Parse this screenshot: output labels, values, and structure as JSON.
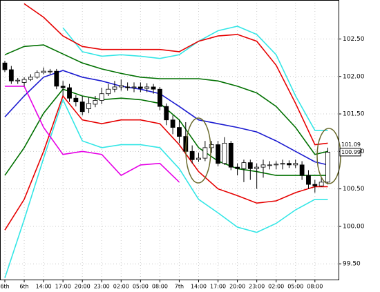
{
  "chart_data": {
    "type": "candlestick",
    "categories": [
      "6th",
      null,
      null,
      "6th",
      null,
      null,
      "14:00",
      null,
      null,
      "17:00",
      null,
      null,
      "20:00",
      null,
      null,
      "23:00",
      null,
      null,
      "02:00",
      null,
      null,
      "05:00",
      null,
      null,
      "08:00",
      null,
      null,
      "7th",
      null,
      null,
      "14:00",
      null,
      null,
      "17:00",
      null,
      null,
      "20:00",
      null,
      null,
      "23:00",
      null,
      null,
      "02:00",
      null,
      null,
      "05:00",
      null,
      null,
      "08:00",
      null,
      null
    ],
    "open": [
      102.18,
      102.09,
      101.94,
      101.92,
      101.96,
      101.99,
      102.05,
      102.07,
      102.07,
      101.87,
      101.85,
      101.71,
      101.66,
      101.57,
      101.63,
      101.68,
      101.77,
      101.83,
      101.86,
      101.86,
      101.85,
      101.86,
      101.84,
      101.86,
      101.83,
      101.6,
      101.42,
      101.32,
      101.2,
      101.0,
      100.89,
      100.91,
      101.05,
      101.09,
      100.84,
      101.11,
      100.79,
      100.77,
      100.85,
      100.77,
      100.79,
      100.82,
      100.82,
      100.83,
      100.84,
      100.82,
      100.82,
      100.68,
      100.56,
      100.54,
      100.59
    ],
    "high": [
      102.21,
      102.14,
      101.98,
      101.99,
      102.03,
      102.08,
      102.12,
      102.1,
      102.1,
      101.94,
      101.9,
      101.75,
      101.74,
      101.72,
      101.74,
      101.85,
      101.9,
      101.94,
      101.96,
      101.92,
      101.92,
      101.92,
      101.91,
      101.9,
      101.86,
      101.64,
      101.48,
      101.42,
      101.39,
      101.08,
      100.98,
      101.14,
      101.14,
      101.14,
      101.19,
      101.14,
      100.84,
      100.89,
      100.89,
      100.84,
      100.89,
      100.87,
      100.87,
      100.89,
      100.88,
      100.89,
      100.87,
      100.75,
      100.62,
      100.65,
      101.05
    ],
    "low": [
      102.06,
      101.9,
      101.9,
      101.87,
      101.94,
      101.97,
      102.03,
      102.03,
      101.83,
      101.74,
      101.66,
      101.6,
      101.48,
      101.51,
      101.59,
      101.63,
      101.74,
      101.79,
      101.81,
      101.81,
      101.79,
      101.79,
      101.79,
      101.77,
      101.55,
      101.35,
      101.23,
      101.11,
      100.96,
      100.84,
      100.86,
      100.87,
      100.98,
      100.8,
      100.82,
      100.75,
      100.68,
      100.59,
      100.62,
      100.5,
      100.65,
      100.76,
      100.76,
      100.76,
      100.78,
      100.78,
      100.62,
      100.5,
      100.45,
      100.53,
      100.56
    ],
    "close": [
      102.09,
      101.94,
      101.95,
      101.96,
      101.99,
      102.05,
      102.07,
      102.07,
      101.87,
      101.85,
      101.71,
      101.66,
      101.53,
      101.64,
      101.68,
      101.77,
      101.83,
      101.86,
      101.88,
      101.85,
      101.86,
      101.84,
      101.86,
      101.83,
      101.6,
      101.42,
      101.32,
      101.2,
      101.0,
      100.89,
      100.91,
      101.05,
      101.09,
      100.84,
      101.11,
      100.79,
      100.77,
      100.85,
      100.77,
      100.79,
      100.82,
      100.82,
      100.83,
      100.84,
      100.82,
      100.84,
      100.68,
      100.56,
      100.54,
      100.59,
      100.99
    ],
    "lines_x": [
      0,
      3,
      6,
      9,
      12,
      15,
      18,
      21,
      24,
      27,
      30,
      33,
      36,
      39,
      42,
      45,
      48,
      50
    ],
    "lines": [
      {
        "color": "#33e6e6",
        "values": [
          null,
          null,
          null,
          102.65,
          102.33,
          102.27,
          102.29,
          102.27,
          102.24,
          102.29,
          102.47,
          102.61,
          102.67,
          102.56,
          102.29,
          101.74,
          101.28,
          101.28
        ]
      },
      {
        "color": "#e60000",
        "values": [
          null,
          102.97,
          102.79,
          102.54,
          102.4,
          102.36,
          102.36,
          102.36,
          102.36,
          102.33,
          102.47,
          102.54,
          102.56,
          102.47,
          102.15,
          101.64,
          101.09,
          101.11
        ]
      },
      {
        "color": "#007000",
        "values": [
          102.29,
          102.4,
          102.42,
          102.3,
          102.18,
          102.1,
          102.04,
          101.99,
          101.97,
          101.97,
          101.97,
          101.94,
          101.87,
          101.78,
          101.6,
          101.32,
          100.96,
          101.0
        ]
      },
      {
        "color": "#1a1ad0",
        "values": [
          101.46,
          101.74,
          101.99,
          102.08,
          101.99,
          101.94,
          101.87,
          101.83,
          101.77,
          101.6,
          101.42,
          101.37,
          101.32,
          101.26,
          101.14,
          101.0,
          100.86,
          100.82
        ]
      },
      {
        "color": "#007000",
        "values": [
          100.68,
          101.05,
          101.51,
          101.83,
          101.74,
          101.69,
          101.71,
          101.69,
          101.64,
          101.42,
          101.05,
          100.87,
          100.77,
          100.73,
          100.68,
          100.68,
          100.68,
          100.68
        ]
      },
      {
        "color": "#e60000",
        "values": [
          99.95,
          100.36,
          101.0,
          101.74,
          101.42,
          101.37,
          101.42,
          101.42,
          101.37,
          101.09,
          100.73,
          100.5,
          100.41,
          100.31,
          100.34,
          100.45,
          100.53,
          100.53
        ]
      },
      {
        "color": "#33e6e6",
        "values": [
          99.31,
          100.09,
          100.91,
          101.69,
          101.14,
          101.05,
          101.09,
          101.09,
          101.05,
          100.77,
          100.36,
          100.18,
          99.99,
          99.92,
          100.04,
          100.22,
          100.36,
          100.36
        ]
      },
      {
        "color": "#e600e6",
        "values": [
          101.87,
          101.87,
          101.32,
          100.96,
          101.0,
          100.96,
          100.68,
          100.82,
          100.84,
          100.59,
          null,
          null,
          null,
          null,
          null,
          null,
          null,
          null
        ]
      }
    ],
    "ylim": [
      99.29,
      103.02
    ],
    "yticks": [
      {
        "value": 99.5,
        "label": "99.50"
      },
      {
        "value": 100,
        "label": "100.00"
      },
      {
        "value": 100.5,
        "label": "100.50"
      },
      {
        "value": 101,
        "label": "101.00"
      },
      {
        "value": 101.5,
        "label": "101.50"
      },
      {
        "value": 102,
        "label": "102.00"
      },
      {
        "value": 102.5,
        "label": "102.50"
      }
    ],
    "price_markers": [
      {
        "value": 101.09,
        "color": "#ff0000"
      },
      {
        "value": 100.99,
        "color": "#000000"
      }
    ],
    "grid": true
  }
}
